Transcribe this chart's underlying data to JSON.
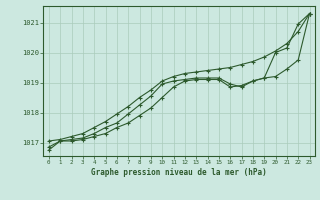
{
  "title": "Graphe pression niveau de la mer (hPa)",
  "bg_color": "#cce8e0",
  "grid_color": "#aaccbb",
  "line_color": "#2d5a2d",
  "x_ticks": [
    0,
    1,
    2,
    3,
    4,
    5,
    6,
    7,
    8,
    9,
    10,
    11,
    12,
    13,
    14,
    15,
    16,
    17,
    18,
    19,
    20,
    21,
    22,
    23
  ],
  "y_ticks": [
    1017,
    1018,
    1019,
    1020,
    1021
  ],
  "ylim": [
    1016.55,
    1021.55
  ],
  "xlim": [
    -0.5,
    23.5
  ],
  "series": [
    [
      1016.75,
      1017.05,
      1017.05,
      1017.1,
      1017.2,
      1017.3,
      1017.5,
      1017.65,
      1017.9,
      1018.15,
      1018.5,
      1018.85,
      1019.05,
      1019.1,
      1019.1,
      1019.1,
      1018.85,
      1018.9,
      1019.05,
      1019.15,
      1019.2,
      1019.45,
      1019.75,
      1021.3
    ],
    [
      1016.85,
      1017.05,
      1017.1,
      1017.15,
      1017.3,
      1017.5,
      1017.65,
      1017.95,
      1018.25,
      1018.55,
      1018.95,
      1019.05,
      1019.1,
      1019.15,
      1019.15,
      1019.15,
      1018.95,
      1018.85,
      1019.05,
      1019.15,
      1020.0,
      1020.15,
      1020.95,
      1021.3
    ],
    [
      1017.05,
      1017.1,
      1017.2,
      1017.3,
      1017.5,
      1017.7,
      1017.95,
      1018.2,
      1018.5,
      1018.75,
      1019.05,
      1019.2,
      1019.3,
      1019.35,
      1019.4,
      1019.45,
      1019.5,
      1019.6,
      1019.7,
      1019.85,
      1020.05,
      1020.3,
      1020.7,
      1021.3
    ]
  ]
}
